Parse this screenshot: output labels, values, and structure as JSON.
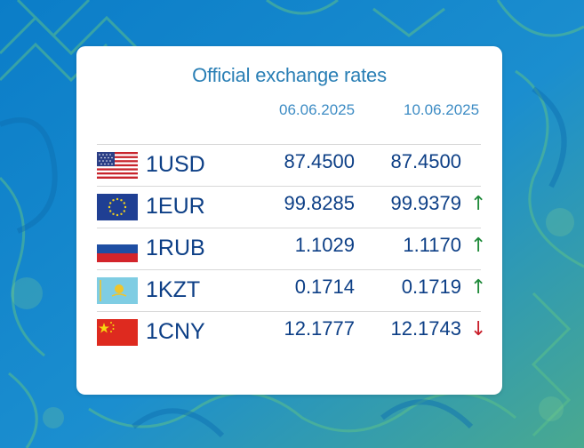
{
  "widget": {
    "title": "Official exchange rates",
    "dates": [
      "06.06.2025",
      "10.06.2025"
    ],
    "colors": {
      "title": "#2a7fb5",
      "text": "#0d3f86",
      "up": "#1f8a3a",
      "down": "#c81e2a"
    },
    "rates": [
      {
        "code": "1USD",
        "flag": "us-flag-icon",
        "rate_1": "87.4500",
        "rate_2": "87.4500",
        "trend": "none",
        "arrow": ""
      },
      {
        "code": "1EUR",
        "flag": "eu-flag-icon",
        "rate_1": "99.8285",
        "rate_2": "99.9379",
        "trend": "up",
        "arrow": "↑"
      },
      {
        "code": "1RUB",
        "flag": "ru-flag-icon",
        "rate_1": "1.1029",
        "rate_2": "1.1170",
        "trend": "up",
        "arrow": "↑"
      },
      {
        "code": "1KZT",
        "flag": "kz-flag-icon",
        "rate_1": "0.1714",
        "rate_2": "0.1719",
        "trend": "up",
        "arrow": "↑"
      },
      {
        "code": "1CNY",
        "flag": "cn-flag-icon",
        "rate_1": "12.1777",
        "rate_2": "12.1743",
        "trend": "down",
        "arrow": "↓"
      }
    ]
  }
}
